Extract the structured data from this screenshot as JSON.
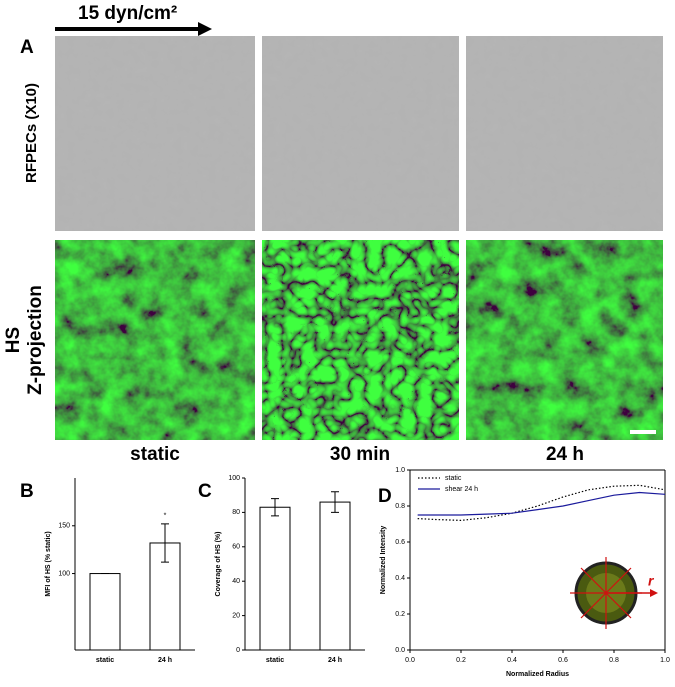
{
  "figure": {
    "flow_label": "15 dyn/cm²",
    "panel_label": "A",
    "row_labels": [
      [
        "RFPECs (X10)"
      ],
      [
        "HS",
        "Z-projection"
      ]
    ],
    "column_labels": [
      "static",
      "30 min",
      "24 h"
    ]
  },
  "chart_data": [
    {
      "type": "bar",
      "panel_label": "B",
      "ylabel": "MFI of HS (% static)",
      "categories": [
        "static",
        "24 h"
      ],
      "values": [
        100,
        132
      ],
      "errors": [
        0,
        20
      ],
      "color": "#ffffff",
      "ylim": [
        20,
        200
      ],
      "yticks": [
        100,
        150
      ],
      "annotation": "*"
    },
    {
      "type": "bar",
      "panel_label": "C",
      "ylabel": "Coverage of HS (%)",
      "categories": [
        "static",
        "24 h"
      ],
      "values": [
        83,
        86
      ],
      "errors": [
        5,
        6
      ],
      "color": "#ffffff",
      "ylim": [
        0,
        100
      ],
      "yticks": [
        0,
        20,
        40,
        60,
        80,
        100
      ]
    },
    {
      "type": "line",
      "panel_label": "D",
      "xlabel": "Normalized Radius",
      "ylabel": "Normalized Intensity",
      "x": [
        0.03,
        0.1,
        0.2,
        0.3,
        0.4,
        0.5,
        0.6,
        0.7,
        0.8,
        0.9,
        1.0
      ],
      "series": [
        {
          "name": "static",
          "color": "#000000",
          "style": "dotted",
          "values": [
            0.73,
            0.725,
            0.72,
            0.735,
            0.76,
            0.8,
            0.85,
            0.89,
            0.91,
            0.915,
            0.89
          ]
        },
        {
          "name": "shear 24 h",
          "color": "#1a1a9c",
          "style": "solid",
          "values": [
            0.75,
            0.75,
            0.75,
            0.755,
            0.76,
            0.78,
            0.8,
            0.83,
            0.86,
            0.875,
            0.865
          ]
        }
      ],
      "xlim": [
        0,
        1
      ],
      "ylim": [
        0,
        1
      ],
      "xticks": [
        {
          "value": 0,
          "label": "0.0"
        },
        {
          "value": 0.2,
          "label": "0.2"
        },
        {
          "value": 0.4,
          "label": "0.4"
        },
        {
          "value": 0.6,
          "label": "0.6"
        },
        {
          "value": 0.8,
          "label": "0.8"
        },
        {
          "value": 1,
          "label": "1.0"
        }
      ],
      "yticks": [
        {
          "value": 0,
          "label": "0.0"
        },
        {
          "value": 0.2,
          "label": "0.2"
        },
        {
          "value": 0.4,
          "label": "0.4"
        },
        {
          "value": 0.6,
          "label": "0.6"
        },
        {
          "value": 0.8,
          "label": "0.8"
        },
        {
          "value": 1,
          "label": "1.0"
        }
      ],
      "legend": "upper left",
      "annotation": "r"
    }
  ]
}
